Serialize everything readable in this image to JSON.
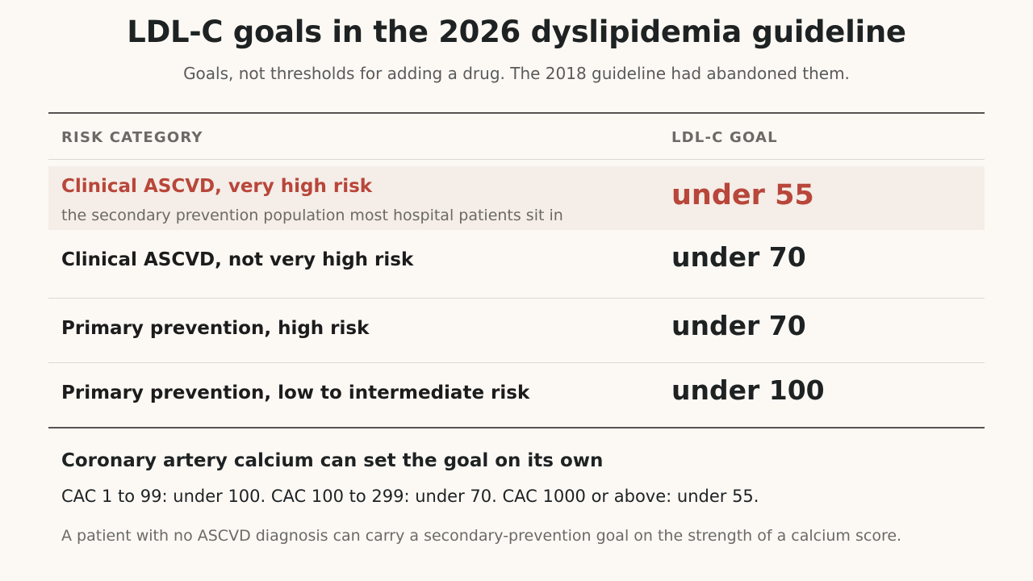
{
  "header": {
    "title": "LDL-C goals in the 2026 dyslipidemia guideline",
    "subtitle": "Goals, not thresholds for adding a drug. The 2018 guideline had abandoned them."
  },
  "table": {
    "columns": [
      "RISK CATEGORY",
      "LDL-C GOAL"
    ],
    "rows": [
      {
        "category": "Clinical ASCVD, very high risk",
        "note": "the secondary prevention population most hospital patients sit in",
        "goal": "under 55",
        "highlighted": true
      },
      {
        "category": "Clinical ASCVD, not very high risk",
        "goal": "under 70"
      },
      {
        "category": "Primary prevention, high risk",
        "goal": "under 70"
      },
      {
        "category": "Primary prevention, low to intermediate risk",
        "goal": "under 100"
      }
    ]
  },
  "cac": {
    "heading": "Coronary artery calcium can set the goal on its own",
    "body": "CAC 1 to 99: under 100. CAC 100 to 299: under 70. CAC 1000 or above: under 55.",
    "note": "A patient with no ASCVD diagnosis can carry a secondary-prevention goal on the strength of a calcium score."
  },
  "colors": {
    "accent": "#b8463a",
    "highlight_bg": "#f5ede7",
    "page_bg": "#fcf9f5"
  }
}
